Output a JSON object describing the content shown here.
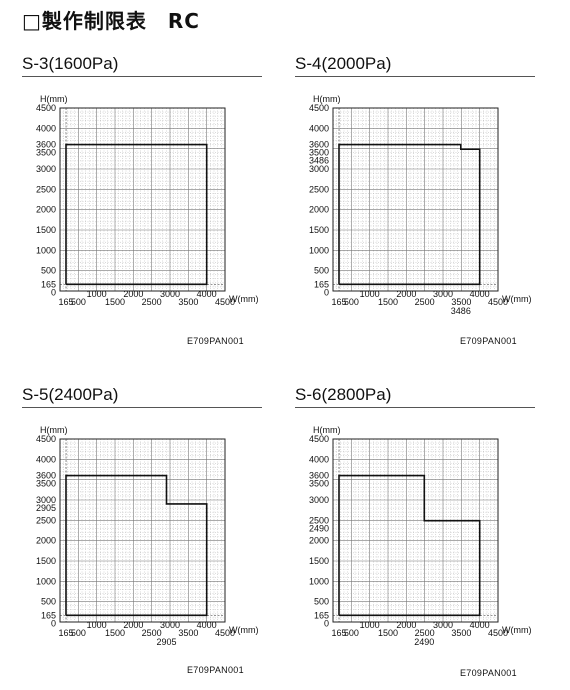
{
  "header": {
    "title": "□製作制限表　RC"
  },
  "panels": [
    {
      "title": "S-3(1600Pa)",
      "code": "E709PAN001"
    },
    {
      "title": "S-4(2000Pa)",
      "code": "E709PAN001"
    },
    {
      "title": "S-5(2400Pa)",
      "code": "E709PAN001"
    },
    {
      "title": "S-6(2800Pa)",
      "code": "E709PAN001"
    }
  ],
  "chart_data": [
    {
      "type": "line",
      "title": "S-3(1600Pa)",
      "xlabel": "W(mm)",
      "ylabel": "H(mm)",
      "xlim": [
        0,
        4500
      ],
      "ylim": [
        0,
        4500
      ],
      "x_ticks": [
        165,
        500,
        1000,
        1500,
        2000,
        2500,
        3000,
        3500,
        4000,
        4500
      ],
      "y_ticks": [
        0,
        165,
        500,
        1000,
        1500,
        2000,
        2500,
        3000,
        3500,
        3600,
        4000,
        4500
      ],
      "extra_x_ticks": [],
      "extra_y_ticks": [],
      "grid": true,
      "outline": [
        [
          165,
          165
        ],
        [
          165,
          3600
        ],
        [
          4000,
          3600
        ],
        [
          4000,
          165
        ],
        [
          165,
          165
        ]
      ]
    },
    {
      "type": "line",
      "title": "S-4(2000Pa)",
      "xlabel": "W(mm)",
      "ylabel": "H(mm)",
      "xlim": [
        0,
        4500
      ],
      "ylim": [
        0,
        4500
      ],
      "x_ticks": [
        165,
        500,
        1000,
        1500,
        2000,
        2500,
        3000,
        3500,
        4000,
        4500
      ],
      "y_ticks": [
        0,
        165,
        500,
        1000,
        1500,
        2000,
        2500,
        3000,
        3486,
        3500,
        3600,
        4000,
        4500
      ],
      "extra_x_ticks": [
        3486
      ],
      "extra_y_ticks": [],
      "grid": true,
      "outline": [
        [
          165,
          165
        ],
        [
          165,
          3600
        ],
        [
          3486,
          3600
        ],
        [
          3486,
          3486
        ],
        [
          4000,
          3486
        ],
        [
          4000,
          165
        ],
        [
          165,
          165
        ]
      ]
    },
    {
      "type": "line",
      "title": "S-5(2400Pa)",
      "xlabel": "W(mm)",
      "ylabel": "H(mm)",
      "xlim": [
        0,
        4500
      ],
      "ylim": [
        0,
        4500
      ],
      "x_ticks": [
        165,
        500,
        1000,
        1500,
        2000,
        2500,
        3000,
        3500,
        4000,
        4500
      ],
      "y_ticks": [
        0,
        165,
        500,
        1000,
        1500,
        2000,
        2500,
        2905,
        3000,
        3500,
        3600,
        4000,
        4500
      ],
      "extra_x_ticks": [
        2905
      ],
      "extra_y_ticks": [],
      "grid": true,
      "outline": [
        [
          165,
          165
        ],
        [
          165,
          3600
        ],
        [
          2905,
          3600
        ],
        [
          2905,
          2905
        ],
        [
          4000,
          2905
        ],
        [
          4000,
          165
        ],
        [
          165,
          165
        ]
      ]
    },
    {
      "type": "line",
      "title": "S-6(2800Pa)",
      "xlabel": "W(mm)",
      "ylabel": "H(mm)",
      "xlim": [
        0,
        4500
      ],
      "ylim": [
        0,
        4500
      ],
      "x_ticks": [
        165,
        500,
        1000,
        1500,
        2000,
        2500,
        3000,
        3500,
        4000,
        4500
      ],
      "y_ticks": [
        0,
        165,
        500,
        1000,
        1500,
        2000,
        2490,
        2500,
        3000,
        3500,
        3600,
        4000,
        4500
      ],
      "extra_x_ticks": [
        2490
      ],
      "extra_y_ticks": [],
      "grid": true,
      "outline": [
        [
          165,
          165
        ],
        [
          165,
          3600
        ],
        [
          2490,
          3600
        ],
        [
          2490,
          2490
        ],
        [
          4000,
          2490
        ],
        [
          4000,
          165
        ],
        [
          165,
          165
        ]
      ]
    }
  ]
}
